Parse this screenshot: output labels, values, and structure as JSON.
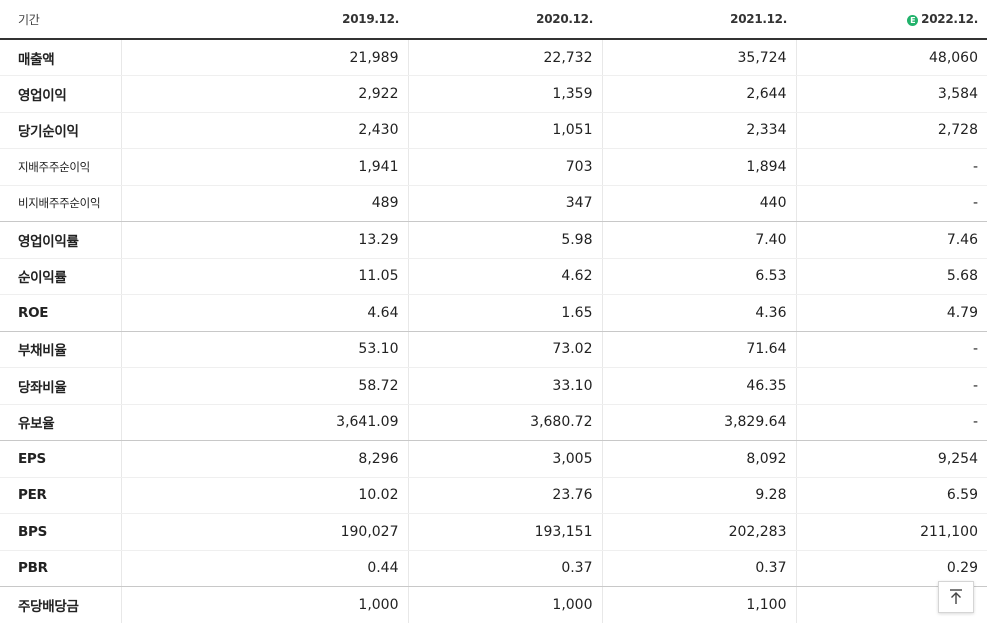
{
  "header": {
    "period_label": "기간",
    "columns": [
      "2019.12.",
      "2020.12.",
      "2021.12.",
      "2022.12."
    ],
    "estimate_marker": "E"
  },
  "rows": [
    {
      "label": "매출액",
      "values": [
        "21,989",
        "22,732",
        "35,724",
        "48,060"
      ]
    },
    {
      "label": "영업이익",
      "values": [
        "2,922",
        "1,359",
        "2,644",
        "3,584"
      ]
    },
    {
      "label": "당기순이익",
      "values": [
        "2,430",
        "1,051",
        "2,334",
        "2,728"
      ]
    },
    {
      "label": "지배주주순이익",
      "values": [
        "1,941",
        "703",
        "1,894",
        "-"
      ]
    },
    {
      "label": "비지배주주순이익",
      "values": [
        "489",
        "347",
        "440",
        "-"
      ]
    },
    {
      "label": "영업이익률",
      "values": [
        "13.29",
        "5.98",
        "7.40",
        "7.46"
      ]
    },
    {
      "label": "순이익률",
      "values": [
        "11.05",
        "4.62",
        "6.53",
        "5.68"
      ]
    },
    {
      "label": "ROE",
      "values": [
        "4.64",
        "1.65",
        "4.36",
        "4.79"
      ]
    },
    {
      "label": "부채비율",
      "values": [
        "53.10",
        "73.02",
        "71.64",
        "-"
      ]
    },
    {
      "label": "당좌비율",
      "values": [
        "58.72",
        "33.10",
        "46.35",
        "-"
      ]
    },
    {
      "label": "유보율",
      "values": [
        "3,641.09",
        "3,680.72",
        "3,829.64",
        "-"
      ]
    },
    {
      "label": "EPS",
      "values": [
        "8,296",
        "3,005",
        "8,092",
        "9,254"
      ]
    },
    {
      "label": "PER",
      "values": [
        "10.02",
        "23.76",
        "9.28",
        "6.59"
      ]
    },
    {
      "label": "BPS",
      "values": [
        "190,027",
        "193,151",
        "202,283",
        "211,100"
      ]
    },
    {
      "label": "PBR",
      "values": [
        "0.44",
        "0.37",
        "0.37",
        "0.29"
      ]
    },
    {
      "label": "주당배당금",
      "values": [
        "1,000",
        "1,000",
        "1,100",
        ""
      ]
    }
  ],
  "colors": {
    "estimate_icon": "#21b26b",
    "header_border": "#333333"
  }
}
